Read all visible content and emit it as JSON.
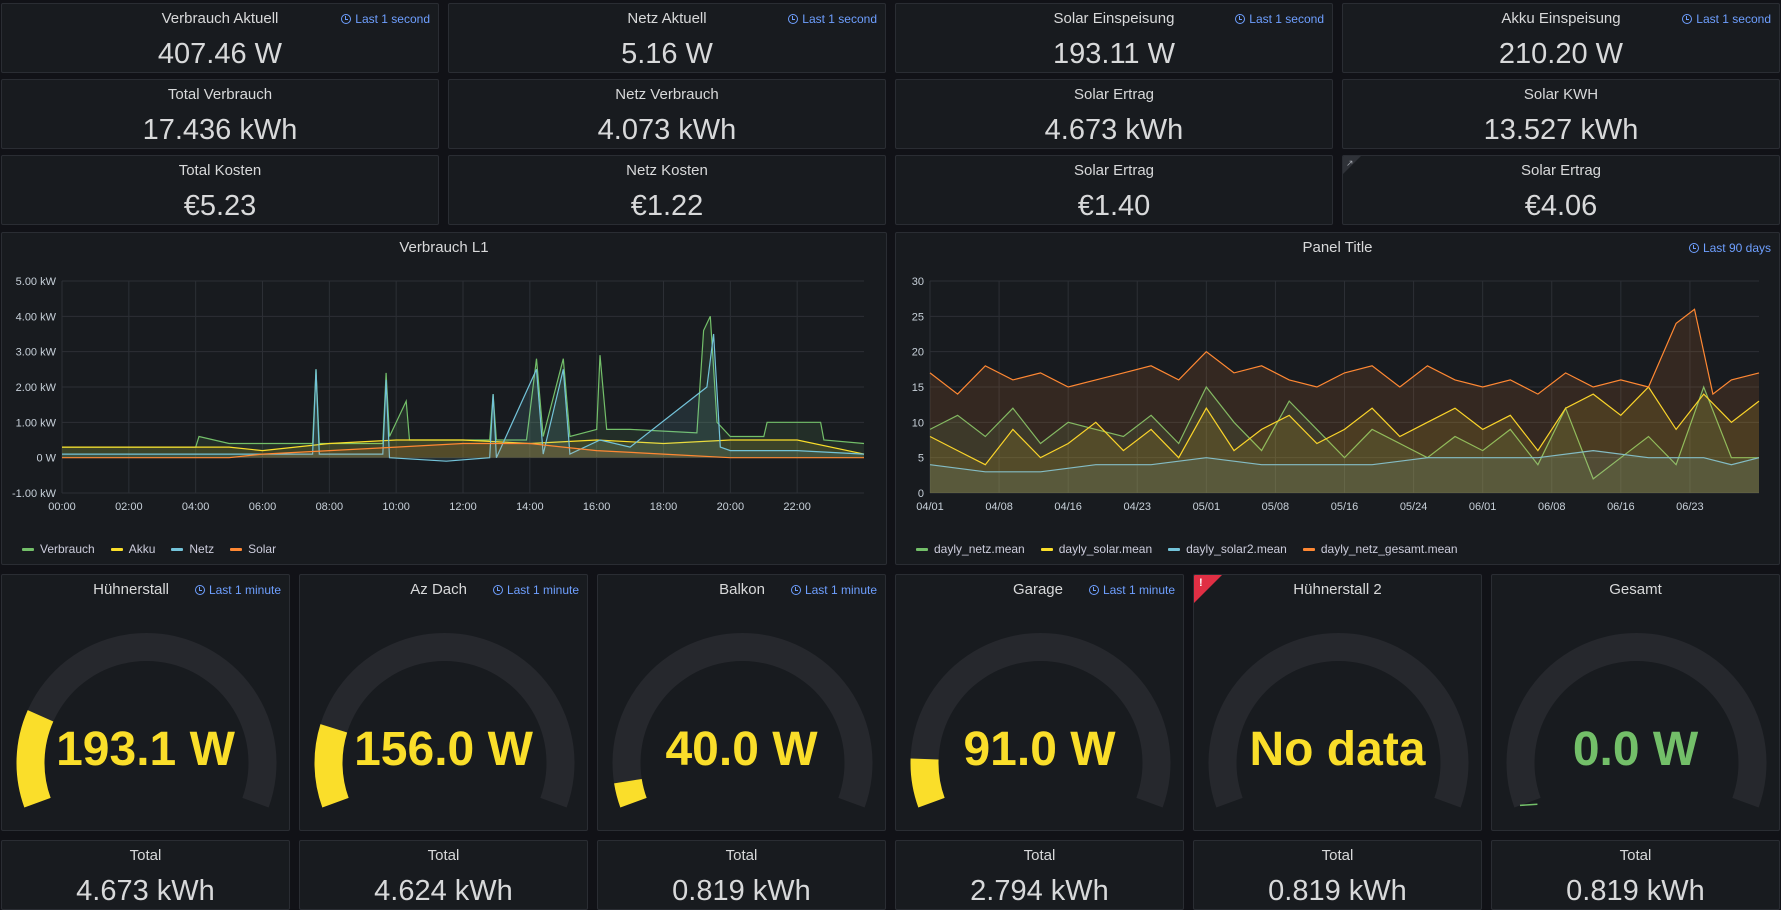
{
  "colors": {
    "background": "#111217",
    "panel": "#181b1f",
    "yellow": "#fade2a",
    "green": "#73bf69",
    "blue": "#6e9fff",
    "gauge_track": "#26282d",
    "orange": "#ff9830",
    "cyan": "#8ab8ff",
    "series_green": "#73bf69",
    "series_yellow": "#fade2a",
    "series_cyan": "#73c3d9",
    "series_orange": "#ff8833"
  },
  "stat_row1": [
    {
      "title": "Verbrauch Aktuell",
      "value": "407.46 W",
      "time": "Last 1 second"
    },
    {
      "title": "Netz Aktuell",
      "value": "5.16 W",
      "time": "Last 1 second"
    },
    {
      "title": "Solar Einspeisung",
      "value": "193.11 W",
      "time": "Last 1 second"
    },
    {
      "title": "Akku Einspeisung",
      "value": "210.20 W",
      "time": "Last 1 second"
    }
  ],
  "stat_row2": [
    {
      "title": "Total Verbrauch",
      "value": "17.436 kWh"
    },
    {
      "title": "Netz Verbrauch",
      "value": "4.073 kWh"
    },
    {
      "title": "Solar Ertrag",
      "value": "4.673 kWh"
    },
    {
      "title": "Solar KWH",
      "value": "13.527 kWh"
    }
  ],
  "stat_row3": [
    {
      "title": "Total Kosten",
      "value": "€5.23"
    },
    {
      "title": "Netz Kosten",
      "value": "€1.22"
    },
    {
      "title": "Solar Ertrag",
      "value": "€1.40"
    },
    {
      "title": "Solar Ertrag",
      "value": "€4.06"
    }
  ],
  "gauges": [
    {
      "title": "Hühnerstall",
      "value": "193.1 W",
      "time": "Last 1 minute",
      "fraction": 0.2,
      "color": "yellow"
    },
    {
      "title": "Az Dach",
      "value": "156.0 W",
      "time": "Last 1 minute",
      "fraction": 0.17,
      "color": "yellow"
    },
    {
      "title": "Balkon",
      "value": "40.0 W",
      "time": "Last 1 minute",
      "fraction": 0.05,
      "color": "yellow"
    },
    {
      "title": "Garage",
      "value": "91.0 W",
      "time": "Last 1 minute",
      "fraction": 0.1,
      "color": "yellow"
    },
    {
      "title": "Hühnerstall 2",
      "value": "No data",
      "time": "",
      "fraction": 0,
      "color": "yellow"
    },
    {
      "title": "Gesamt",
      "value": "0.0 W",
      "time": "",
      "fraction": 0,
      "color": "green"
    }
  ],
  "totals": [
    {
      "title": "Total",
      "value": "4.673 kWh"
    },
    {
      "title": "Total",
      "value": "4.624 kWh"
    },
    {
      "title": "Total",
      "value": "0.819 kWh"
    },
    {
      "title": "Total",
      "value": "2.794 kWh"
    },
    {
      "title": "Total",
      "value": "0.819 kWh"
    },
    {
      "title": "Total",
      "value": "0.819 kWh"
    }
  ],
  "chart_data": [
    {
      "type": "line",
      "title": "Verbrauch L1",
      "yticks": [
        "5.00 kW",
        "4.00 kW",
        "3.00 kW",
        "2.00 kW",
        "1.00 kW",
        "0 W",
        "-1.00 kW"
      ],
      "xticks": [
        "00:00",
        "02:00",
        "04:00",
        "06:00",
        "08:00",
        "10:00",
        "12:00",
        "14:00",
        "16:00",
        "18:00",
        "20:00",
        "22:00"
      ],
      "ylim": [
        -1,
        5
      ],
      "xlim": [
        0,
        24
      ],
      "legend": "bottom-left",
      "series": [
        {
          "name": "Verbrauch",
          "color": "#73bf69",
          "points": [
            [
              0,
              0.3
            ],
            [
              4,
              0.3
            ],
            [
              4.1,
              0.6
            ],
            [
              5,
              0.4
            ],
            [
              7.5,
              0.4
            ],
            [
              7.6,
              2.5
            ],
            [
              7.7,
              0.4
            ],
            [
              9.6,
              0.4
            ],
            [
              9.7,
              2.4
            ],
            [
              9.8,
              0.6
            ],
            [
              10.3,
              1.6
            ],
            [
              10.4,
              0.5
            ],
            [
              11.5,
              0.5
            ],
            [
              12.8,
              0.5
            ],
            [
              12.9,
              1.8
            ],
            [
              13,
              0.5
            ],
            [
              13.9,
              0.5
            ],
            [
              14.2,
              2.8
            ],
            [
              14.4,
              0.6
            ],
            [
              15,
              2.8
            ],
            [
              15.2,
              0.6
            ],
            [
              16,
              0.8
            ],
            [
              16.1,
              2.9
            ],
            [
              16.3,
              0.8
            ],
            [
              17,
              0.8
            ],
            [
              19,
              0.7
            ],
            [
              19.2,
              3.6
            ],
            [
              19.4,
              4.0
            ],
            [
              19.6,
              1.0
            ],
            [
              20,
              0.6
            ],
            [
              21,
              0.6
            ],
            [
              21.1,
              1.0
            ],
            [
              22.7,
              1.0
            ],
            [
              22.8,
              0.5
            ],
            [
              24,
              0.4
            ]
          ]
        },
        {
          "name": "Akku",
          "color": "#fade2a",
          "points": [
            [
              0,
              0.3
            ],
            [
              4,
              0.3
            ],
            [
              5,
              0.3
            ],
            [
              6,
              0.2
            ],
            [
              8,
              0.4
            ],
            [
              10,
              0.5
            ],
            [
              12,
              0.5
            ],
            [
              14,
              0.4
            ],
            [
              16,
              0.5
            ],
            [
              18,
              0.4
            ],
            [
              20,
              0.5
            ],
            [
              22,
              0.5
            ],
            [
              24,
              0.1
            ]
          ]
        },
        {
          "name": "Netz",
          "color": "#73c3d9",
          "points": [
            [
              0,
              0.1
            ],
            [
              4,
              0.1
            ],
            [
              7.5,
              0.1
            ],
            [
              7.6,
              2.5
            ],
            [
              7.7,
              0.1
            ],
            [
              9.6,
              0.1
            ],
            [
              9.7,
              2.2
            ],
            [
              9.8,
              0.0
            ],
            [
              11.5,
              -0.1
            ],
            [
              12.8,
              0.0
            ],
            [
              12.9,
              1.8
            ],
            [
              13,
              0.0
            ],
            [
              14.2,
              2.5
            ],
            [
              14.4,
              0.1
            ],
            [
              15,
              2.5
            ],
            [
              15.2,
              0.1
            ],
            [
              16.1,
              0.5
            ],
            [
              17,
              0.3
            ],
            [
              19.3,
              2.0
            ],
            [
              19.5,
              3.5
            ],
            [
              19.7,
              0.3
            ],
            [
              20,
              0.2
            ],
            [
              22,
              0.2
            ],
            [
              24,
              0.1
            ]
          ]
        },
        {
          "name": "Solar",
          "color": "#ff8833",
          "points": [
            [
              0,
              0
            ],
            [
              5,
              0
            ],
            [
              6,
              0.1
            ],
            [
              8,
              0.2
            ],
            [
              10,
              0.3
            ],
            [
              12,
              0.4
            ],
            [
              14,
              0.4
            ],
            [
              15,
              0.3
            ],
            [
              16,
              0.2
            ],
            [
              18,
              0.1
            ],
            [
              20,
              0.0
            ],
            [
              24,
              0
            ]
          ]
        }
      ]
    },
    {
      "type": "area",
      "title": "Panel Title",
      "time": "Last 90 days",
      "yticks": [
        "30",
        "25",
        "20",
        "15",
        "10",
        "5",
        "0"
      ],
      "xticks": [
        "04/01",
        "04/08",
        "04/16",
        "04/23",
        "05/01",
        "05/08",
        "05/16",
        "05/24",
        "06/01",
        "06/08",
        "06/16",
        "06/23"
      ],
      "ylim": [
        0,
        30
      ],
      "xlim": [
        0,
        90
      ],
      "legend": "bottom-left",
      "series": [
        {
          "name": "dayly_netz.mean",
          "color": "#73bf69",
          "points": [
            [
              0,
              9
            ],
            [
              3,
              11
            ],
            [
              6,
              8
            ],
            [
              9,
              12
            ],
            [
              12,
              7
            ],
            [
              15,
              10
            ],
            [
              18,
              9
            ],
            [
              21,
              8
            ],
            [
              24,
              11
            ],
            [
              27,
              7
            ],
            [
              30,
              15
            ],
            [
              33,
              10
            ],
            [
              36,
              6
            ],
            [
              39,
              13
            ],
            [
              42,
              9
            ],
            [
              45,
              5
            ],
            [
              48,
              9
            ],
            [
              51,
              7
            ],
            [
              54,
              5
            ],
            [
              57,
              8
            ],
            [
              60,
              6
            ],
            [
              63,
              9
            ],
            [
              66,
              4
            ],
            [
              69,
              12
            ],
            [
              72,
              2
            ],
            [
              75,
              5
            ],
            [
              78,
              8
            ],
            [
              81,
              4
            ],
            [
              84,
              15
            ],
            [
              87,
              5
            ],
            [
              90,
              5
            ]
          ]
        },
        {
          "name": "dayly_solar.mean",
          "color": "#fade2a",
          "points": [
            [
              0,
              8
            ],
            [
              3,
              6
            ],
            [
              6,
              4
            ],
            [
              9,
              9
            ],
            [
              12,
              5
            ],
            [
              15,
              7
            ],
            [
              18,
              10
            ],
            [
              21,
              6
            ],
            [
              24,
              9
            ],
            [
              27,
              5
            ],
            [
              30,
              12
            ],
            [
              33,
              6
            ],
            [
              36,
              9
            ],
            [
              39,
              11
            ],
            [
              42,
              7
            ],
            [
              45,
              9
            ],
            [
              48,
              12
            ],
            [
              51,
              8
            ],
            [
              54,
              10
            ],
            [
              57,
              12
            ],
            [
              60,
              9
            ],
            [
              63,
              11
            ],
            [
              66,
              6
            ],
            [
              69,
              12
            ],
            [
              72,
              14
            ],
            [
              75,
              11
            ],
            [
              78,
              15
            ],
            [
              81,
              9
            ],
            [
              84,
              14
            ],
            [
              87,
              10
            ],
            [
              90,
              13
            ]
          ]
        },
        {
          "name": "dayly_solar2.mean",
          "color": "#73c3d9",
          "points": [
            [
              0,
              4
            ],
            [
              6,
              3
            ],
            [
              12,
              3
            ],
            [
              18,
              4
            ],
            [
              24,
              4
            ],
            [
              30,
              5
            ],
            [
              36,
              4
            ],
            [
              42,
              4
            ],
            [
              48,
              4
            ],
            [
              54,
              5
            ],
            [
              60,
              5
            ],
            [
              66,
              5
            ],
            [
              72,
              6
            ],
            [
              78,
              5
            ],
            [
              84,
              5
            ],
            [
              87,
              4
            ],
            [
              90,
              5
            ]
          ]
        },
        {
          "name": "dayly_netz_gesamt.mean",
          "color": "#ff8833",
          "points": [
            [
              0,
              17
            ],
            [
              3,
              14
            ],
            [
              6,
              18
            ],
            [
              9,
              16
            ],
            [
              12,
              17
            ],
            [
              15,
              15
            ],
            [
              18,
              16
            ],
            [
              21,
              17
            ],
            [
              24,
              18
            ],
            [
              27,
              16
            ],
            [
              30,
              20
            ],
            [
              33,
              17
            ],
            [
              36,
              18
            ],
            [
              39,
              16
            ],
            [
              42,
              15
            ],
            [
              45,
              17
            ],
            [
              48,
              18
            ],
            [
              51,
              15
            ],
            [
              54,
              18
            ],
            [
              57,
              16
            ],
            [
              60,
              15
            ],
            [
              63,
              16
            ],
            [
              66,
              14
            ],
            [
              69,
              17
            ],
            [
              72,
              15
            ],
            [
              75,
              16
            ],
            [
              78,
              15
            ],
            [
              81,
              24
            ],
            [
              83,
              26
            ],
            [
              85,
              14
            ],
            [
              87,
              16
            ],
            [
              90,
              17
            ]
          ]
        }
      ]
    }
  ]
}
